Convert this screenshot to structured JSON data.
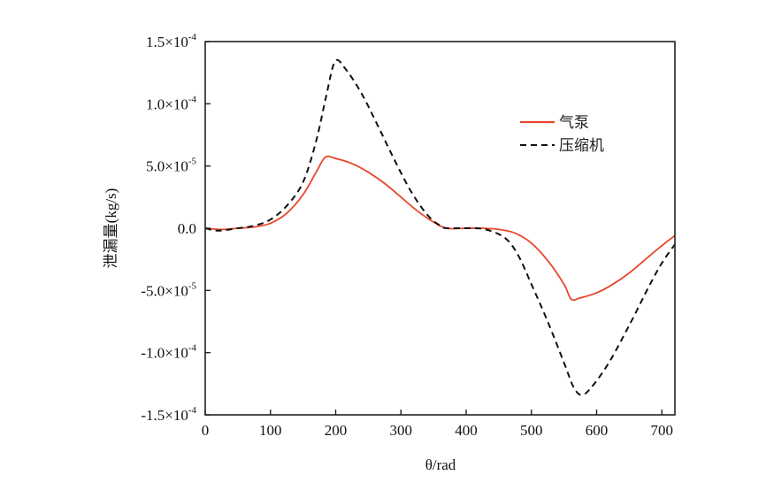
{
  "chart_data": {
    "type": "line",
    "title": "",
    "xlabel": "θ/rad",
    "ylabel": "泄漏量(kg/s)",
    "xlim": [
      0,
      720
    ],
    "ylim": [
      -0.00015,
      0.00015
    ],
    "grid": false,
    "legend_position": "upper right (inside)",
    "x_ticks": [
      0,
      100,
      200,
      300,
      400,
      500,
      600,
      700
    ],
    "x_tick_labels": [
      "0",
      "100",
      "200",
      "300",
      "400",
      "500",
      "600",
      "700"
    ],
    "y_ticks": [
      0.00015,
      0.0001,
      5e-05,
      0,
      -5e-05,
      -0.0001,
      -0.00015
    ],
    "y_tick_labels": [
      {
        "mant": "1.5×10",
        "exp": "-4"
      },
      {
        "mant": "1.0×10",
        "exp": "-4"
      },
      {
        "mant": "5.0×10",
        "exp": "-5"
      },
      {
        "mant": "0.0",
        "exp": ""
      },
      {
        "mant": "-5.0×10",
        "exp": "-5"
      },
      {
        "mant": "-1.0×10",
        "exp": "-4"
      },
      {
        "mant": "-1.5×10",
        "exp": "-4"
      }
    ],
    "series": [
      {
        "name": "气泵",
        "color": "#E8462A",
        "style": "solid",
        "x": [
          0,
          25,
          50,
          75,
          100,
          125,
          150,
          170,
          184,
          200,
          225,
          250,
          275,
          300,
          325,
          350,
          370,
          400,
          425,
          450,
          475,
          500,
          525,
          550,
          561,
          575,
          600,
          625,
          650,
          675,
          700,
          720
        ],
        "values": [
          0,
          -1e-06,
          0,
          1e-06,
          4e-06,
          1.2e-05,
          2.7e-05,
          4.5e-05,
          5.7e-05,
          5.6e-05,
          5.2e-05,
          4.5e-05,
          3.6e-05,
          2.5e-05,
          1.4e-05,
          5e-06,
          0,
          0,
          0,
          -1e-06,
          -4e-06,
          -1.2e-05,
          -2.6e-05,
          -4.5e-05,
          -5.7e-05,
          -5.6e-05,
          -5.2e-05,
          -4.5e-05,
          -3.6e-05,
          -2.5e-05,
          -1.4e-05,
          -6e-06
        ]
      },
      {
        "name": "压缩机",
        "color": "#111111",
        "style": "dashed",
        "x": [
          0,
          20,
          50,
          75,
          100,
          125,
          150,
          170,
          185,
          199,
          215,
          240,
          265,
          290,
          315,
          340,
          360,
          370,
          400,
          430,
          460,
          480,
          500,
          525,
          550,
          565,
          578,
          595,
          620,
          650,
          680,
          700,
          720
        ],
        "values": [
          0,
          -2e-06,
          0,
          2e-06,
          7e-06,
          1.8e-05,
          3.7e-05,
          7e-05,
          0.000105,
          0.000134,
          0.000128,
          0.000108,
          8.2e-05,
          5.5e-05,
          3e-05,
          1.1e-05,
          2e-06,
          0,
          0,
          -1e-06,
          -8e-06,
          -2.2e-05,
          -4.5e-05,
          -7.5e-05,
          -0.000108,
          -0.000128,
          -0.000134,
          -0.000126,
          -0.000107,
          -7.8e-05,
          -4.7e-05,
          -2.8e-05,
          -1.3e-05
        ]
      }
    ]
  }
}
